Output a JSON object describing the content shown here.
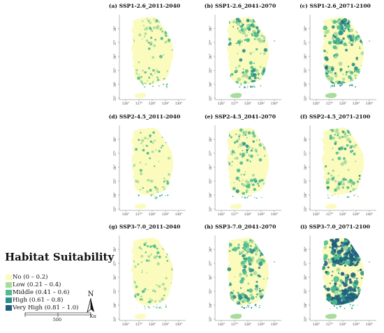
{
  "panels": [
    {
      "title": "(a) SSP1-2.6_2011-2040",
      "level": 0.18
    },
    {
      "title": "(b) SSP1-2.6_2041-2070",
      "level": 0.42
    },
    {
      "title": "(c) SSP1-2.6_2071-2100",
      "level": 0.55
    },
    {
      "title": "(d) SSP2-4.5_2011-2040",
      "level": 0.12
    },
    {
      "title": "(e) SSP2-4.5_2041-2070",
      "level": 0.3
    },
    {
      "title": "(f) SSP2-4.5_2071-2100",
      "level": 0.28
    },
    {
      "title": "(g) SSP3-7.0_2011-2040",
      "level": 0.15
    },
    {
      "title": "(h) SSP3-7.0_2041-2070",
      "level": 0.5
    },
    {
      "title": "(i) SSP3-7.0_2071-2100",
      "level": 0.95
    }
  ],
  "axes": {
    "lat_labels": [
      "38°",
      "37°",
      "36°",
      "35°",
      "34°",
      "33°"
    ],
    "lon_labels": [
      "126°",
      "127°",
      "128°",
      "129°",
      "130°"
    ]
  },
  "legend": {
    "title": "Habitat Suitability",
    "items": [
      {
        "label": "No (0 – 0.2)",
        "color": "#fbfbbd"
      },
      {
        "label": "Low (0.21 – 0.4)",
        "color": "#a9dc9c"
      },
      {
        "label": "Middle (0.41 – 0.6)",
        "color": "#4fbd8f"
      },
      {
        "label": "High (0.61 – 0.8)",
        "color": "#2b9088"
      },
      {
        "label": "Very High (0.81 – 1.0)",
        "color": "#1e5e7e"
      }
    ]
  },
  "north_label": "N",
  "scale": {
    "value": "500",
    "unit": "Km"
  }
}
